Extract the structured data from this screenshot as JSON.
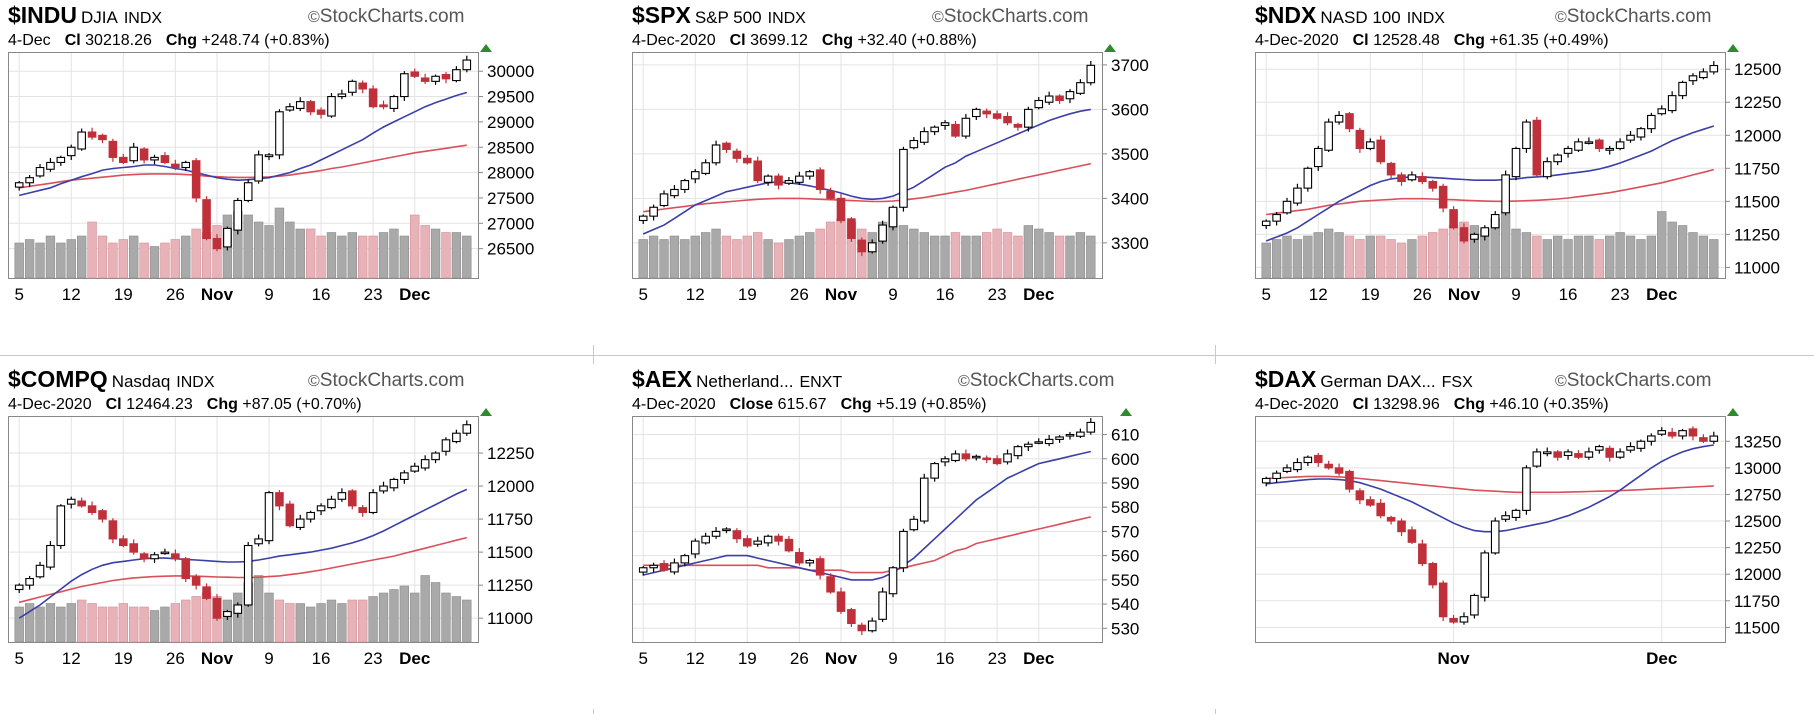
{
  "colors": {
    "up_fill": "#ffffff",
    "down_fill": "#c0303a",
    "ma_short": "#3a3fa8",
    "ma_long": "#d9505a",
    "vol_up": "#a9a9a9",
    "vol_down": "#e8b3b8",
    "uptick": "#2d8a2d"
  },
  "brand": "StockCharts.com",
  "icons": {
    "copyright": "copyright-icon",
    "uptick": "up-triangle-icon",
    "delete": "trash-icon"
  },
  "chart_data": [
    {
      "type": "candlestick",
      "symbol": "$INDU",
      "name": "DJIA",
      "exchange": "INDX",
      "date": "4-Dec",
      "close_label": "Cl",
      "close": "30218.26",
      "chg_label": "Chg",
      "chg": "+248.74 (+0.83%)",
      "x_ticks": [
        "5",
        "12",
        "19",
        "26",
        "Nov",
        "9",
        "16",
        "23",
        "Dec"
      ],
      "y_ticks": [
        "30000",
        "29500",
        "29000",
        "28500",
        "28000",
        "27500",
        "27000",
        "26500"
      ],
      "ylim": [
        26000,
        30300
      ],
      "closes": [
        27800,
        27900,
        28100,
        28200,
        28300,
        28500,
        28800,
        28700,
        28650,
        28300,
        28200,
        28500,
        28250,
        28300,
        28200,
        28100,
        28200,
        27500,
        26700,
        26500,
        26900,
        27450,
        27800,
        28350,
        28350,
        29200,
        29300,
        29400,
        29200,
        29150,
        29500,
        29550,
        29800,
        29650,
        29300,
        29300,
        29500,
        29950,
        29900,
        29800,
        29900,
        29850,
        30030,
        30220
      ],
      "ma_short": [
        27550,
        27600,
        27650,
        27700,
        27780,
        27850,
        27920,
        27980,
        28050,
        28080,
        28100,
        28120,
        28150,
        28150,
        28120,
        28080,
        28050,
        28000,
        27950,
        27900,
        27870,
        27850,
        27860,
        27880,
        27900,
        27950,
        28000,
        28080,
        28150,
        28250,
        28350,
        28450,
        28550,
        28650,
        28780,
        28900,
        29000,
        29100,
        29200,
        29300,
        29380,
        29450,
        29520,
        29580
      ],
      "ma_long": [
        27700,
        27730,
        27760,
        27790,
        27820,
        27850,
        27870,
        27890,
        27910,
        27930,
        27950,
        27960,
        27970,
        27975,
        27975,
        27970,
        27960,
        27950,
        27930,
        27920,
        27910,
        27905,
        27905,
        27910,
        27915,
        27930,
        27950,
        27980,
        28010,
        28040,
        28080,
        28110,
        28150,
        28190,
        28230,
        28270,
        28310,
        28350,
        28390,
        28420,
        28450,
        28480,
        28510,
        28540
      ],
      "volume": [
        0.5,
        0.55,
        0.5,
        0.6,
        0.5,
        0.55,
        0.6,
        0.8,
        0.6,
        0.5,
        0.55,
        0.6,
        0.5,
        0.45,
        0.5,
        0.55,
        0.6,
        0.7,
        0.65,
        0.75,
        0.9,
        0.95,
        0.9,
        0.8,
        0.75,
        1.0,
        0.8,
        0.7,
        0.7,
        0.6,
        0.65,
        0.6,
        0.65,
        0.6,
        0.6,
        0.65,
        0.7,
        0.6,
        0.9,
        0.75,
        0.7,
        0.65,
        0.65,
        0.6
      ]
    },
    {
      "type": "candlestick",
      "symbol": "$SPX",
      "name": "S&P 500",
      "exchange": "INDX",
      "date": "4-Dec-2020",
      "close_label": "Cl",
      "close": "3699.12",
      "chg_label": "Chg",
      "chg": "+32.40 (+0.88%)",
      "x_ticks": [
        "5",
        "12",
        "19",
        "26",
        "Nov",
        "9",
        "16",
        "23",
        "Dec"
      ],
      "y_ticks": [
        "3700",
        "3600",
        "3500",
        "3400",
        "3300"
      ],
      "ylim": [
        3230,
        3720
      ],
      "closes": [
        3360,
        3380,
        3410,
        3420,
        3440,
        3460,
        3480,
        3520,
        3510,
        3490,
        3480,
        3440,
        3450,
        3430,
        3440,
        3450,
        3460,
        3420,
        3400,
        3350,
        3310,
        3280,
        3300,
        3340,
        3380,
        3510,
        3530,
        3550,
        3560,
        3570,
        3540,
        3580,
        3600,
        3590,
        3580,
        3570,
        3560,
        3600,
        3620,
        3630,
        3620,
        3640,
        3660,
        3699
      ],
      "ma_short": [
        3320,
        3330,
        3340,
        3355,
        3370,
        3385,
        3395,
        3405,
        3415,
        3420,
        3425,
        3430,
        3435,
        3437,
        3435,
        3432,
        3428,
        3423,
        3418,
        3412,
        3405,
        3400,
        3398,
        3400,
        3405,
        3415,
        3425,
        3440,
        3455,
        3470,
        3480,
        3495,
        3505,
        3515,
        3525,
        3535,
        3545,
        3555,
        3565,
        3575,
        3583,
        3590,
        3596,
        3600
      ],
      "ma_long": [
        3370,
        3373,
        3376,
        3379,
        3382,
        3385,
        3388,
        3390,
        3392,
        3394,
        3396,
        3398,
        3399,
        3400,
        3400,
        3400,
        3399,
        3398,
        3397,
        3396,
        3395,
        3394,
        3393,
        3393,
        3394,
        3396,
        3399,
        3402,
        3406,
        3410,
        3414,
        3418,
        3423,
        3428,
        3433,
        3438,
        3443,
        3448,
        3453,
        3458,
        3463,
        3468,
        3473,
        3478
      ],
      "volume": [
        0.55,
        0.6,
        0.55,
        0.6,
        0.55,
        0.6,
        0.65,
        0.7,
        0.6,
        0.55,
        0.6,
        0.65,
        0.55,
        0.5,
        0.55,
        0.6,
        0.65,
        0.7,
        0.8,
        0.85,
        0.8,
        0.7,
        0.65,
        0.8,
        1.0,
        0.75,
        0.7,
        0.65,
        0.6,
        0.6,
        0.65,
        0.6,
        0.6,
        0.65,
        0.7,
        0.65,
        0.6,
        0.75,
        0.7,
        0.65,
        0.6,
        0.6,
        0.65,
        0.6
      ]
    },
    {
      "type": "candlestick",
      "symbol": "$NDX",
      "name": "NASD 100",
      "exchange": "INDX",
      "date": "4-Dec-2020",
      "close_label": "Cl",
      "close": "12528.48",
      "chg_label": "Chg",
      "chg": "+61.35 (+0.49%)",
      "x_ticks": [
        "5",
        "12",
        "19",
        "26",
        "Nov",
        "9",
        "16",
        "23",
        "Dec"
      ],
      "y_ticks": [
        "12500",
        "12250",
        "12000",
        "11750",
        "11500",
        "11250",
        "11000"
      ],
      "ylim": [
        10950,
        12600
      ],
      "closes": [
        11350,
        11400,
        11500,
        11600,
        11750,
        11900,
        12100,
        12150,
        12050,
        11900,
        11950,
        11800,
        11700,
        11650,
        11700,
        11650,
        11600,
        11450,
        11300,
        11200,
        11250,
        11300,
        11400,
        11700,
        11900,
        12100,
        11700,
        11800,
        11850,
        11900,
        11950,
        11950,
        11900,
        11900,
        11950,
        12000,
        12050,
        12150,
        12200,
        12300,
        12400,
        12450,
        12480,
        12528
      ],
      "ma_short": [
        11200,
        11230,
        11260,
        11300,
        11350,
        11400,
        11450,
        11500,
        11540,
        11580,
        11620,
        11650,
        11670,
        11680,
        11685,
        11685,
        11680,
        11675,
        11670,
        11665,
        11660,
        11660,
        11660,
        11665,
        11670,
        11680,
        11685,
        11690,
        11700,
        11710,
        11720,
        11730,
        11745,
        11765,
        11790,
        11820,
        11850,
        11880,
        11920,
        11960,
        11990,
        12020,
        12045,
        12070
      ],
      "ma_long": [
        11400,
        11410,
        11420,
        11430,
        11440,
        11455,
        11470,
        11480,
        11490,
        11500,
        11505,
        11510,
        11515,
        11520,
        11520,
        11520,
        11518,
        11515,
        11512,
        11508,
        11505,
        11502,
        11500,
        11500,
        11502,
        11505,
        11508,
        11512,
        11518,
        11525,
        11535,
        11545,
        11555,
        11565,
        11580,
        11595,
        11610,
        11625,
        11640,
        11660,
        11680,
        11700,
        11720,
        11740
      ],
      "volume": [
        0.5,
        0.55,
        0.6,
        0.55,
        0.6,
        0.65,
        0.7,
        0.65,
        0.6,
        0.55,
        0.6,
        0.6,
        0.55,
        0.5,
        0.55,
        0.6,
        0.65,
        0.7,
        0.75,
        0.8,
        0.75,
        0.7,
        0.85,
        0.95,
        0.7,
        0.65,
        0.6,
        0.55,
        0.6,
        0.55,
        0.6,
        0.6,
        0.55,
        0.6,
        0.65,
        0.6,
        0.55,
        0.6,
        0.95,
        0.8,
        0.75,
        0.65,
        0.6,
        0.55
      ]
    },
    {
      "type": "candlestick",
      "symbol": "$COMPQ",
      "name": "Nasdaq",
      "exchange": "INDX",
      "date": "4-Dec-2020",
      "close_label": "Cl",
      "close": "12464.23",
      "chg_label": "Chg",
      "chg": "+87.05 (+0.70%)",
      "x_ticks": [
        "5",
        "12",
        "19",
        "26",
        "Nov",
        "9",
        "16",
        "23",
        "Dec"
      ],
      "y_ticks": [
        "12250",
        "12000",
        "11750",
        "11500",
        "11250",
        "11000"
      ],
      "ylim": [
        10850,
        12500
      ],
      "closes": [
        11250,
        11300,
        11400,
        11550,
        11850,
        11900,
        11850,
        11800,
        11750,
        11600,
        11550,
        11500,
        11450,
        11480,
        11500,
        11450,
        11300,
        11250,
        11150,
        11000,
        11050,
        11100,
        11550,
        11600,
        11950,
        11850,
        11700,
        11750,
        11800,
        11850,
        11900,
        11950,
        11850,
        11800,
        11950,
        12000,
        12050,
        12100,
        12150,
        12200,
        12250,
        12350,
        12400,
        12464
      ],
      "ma_short": [
        11000,
        11050,
        11100,
        11160,
        11220,
        11280,
        11330,
        11370,
        11400,
        11420,
        11430,
        11440,
        11450,
        11455,
        11455,
        11450,
        11445,
        11440,
        11435,
        11430,
        11425,
        11425,
        11430,
        11440,
        11455,
        11470,
        11480,
        11490,
        11500,
        11515,
        11530,
        11550,
        11570,
        11595,
        11625,
        11660,
        11700,
        11740,
        11780,
        11820,
        11860,
        11900,
        11940,
        11975
      ],
      "ma_long": [
        11120,
        11140,
        11160,
        11180,
        11200,
        11220,
        11240,
        11255,
        11270,
        11285,
        11295,
        11305,
        11310,
        11315,
        11318,
        11320,
        11320,
        11318,
        11315,
        11312,
        11310,
        11308,
        11308,
        11310,
        11315,
        11320,
        11330,
        11340,
        11352,
        11365,
        11380,
        11395,
        11410,
        11425,
        11440,
        11455,
        11470,
        11490,
        11510,
        11530,
        11550,
        11570,
        11590,
        11610
      ],
      "volume": [
        0.5,
        0.55,
        0.5,
        0.55,
        0.5,
        0.55,
        0.6,
        0.55,
        0.5,
        0.5,
        0.55,
        0.5,
        0.5,
        0.45,
        0.5,
        0.55,
        0.6,
        0.65,
        0.7,
        0.65,
        0.6,
        0.7,
        0.85,
        0.95,
        0.7,
        0.6,
        0.55,
        0.55,
        0.5,
        0.55,
        0.6,
        0.55,
        0.6,
        0.6,
        0.65,
        0.7,
        0.75,
        0.8,
        0.7,
        0.95,
        0.85,
        0.7,
        0.65,
        0.6
      ]
    },
    {
      "type": "candlestick",
      "symbol": "$AEX",
      "name": "Netherland...",
      "exchange": "ENXT",
      "date": "4-Dec-2020",
      "close_label": "Close",
      "close": "615.67",
      "chg_label": "Chg",
      "chg": "+5.19 (+0.85%)",
      "x_ticks": [
        "5",
        "12",
        "19",
        "26",
        "Nov",
        "9",
        "16",
        "23",
        "Dec"
      ],
      "y_ticks": [
        "610",
        "600",
        "590",
        "580",
        "570",
        "560",
        "550",
        "540",
        "530"
      ],
      "ylim": [
        526,
        616
      ],
      "closes": [
        555,
        556,
        554,
        557,
        560,
        566,
        568,
        570,
        571,
        567,
        564,
        566,
        568,
        566,
        562,
        557,
        558,
        552,
        545,
        537,
        532,
        529,
        533,
        545,
        555,
        570,
        575,
        592,
        598,
        600,
        602,
        600,
        601,
        600,
        598,
        602,
        605,
        606,
        607,
        608,
        609,
        610,
        611,
        615
      ],
      "ma_short": [
        552,
        553,
        554,
        555,
        556,
        557,
        558,
        559,
        560,
        560,
        560,
        559,
        558,
        557,
        556,
        555,
        554,
        553,
        552,
        551,
        550,
        550,
        550,
        551,
        553,
        556,
        559,
        563,
        567,
        571,
        575,
        579,
        583,
        586,
        589,
        592,
        594,
        596,
        598,
        599,
        600,
        601,
        602,
        603
      ],
      "ma_long": [
        556,
        556,
        556,
        556,
        556,
        556,
        556,
        556,
        556,
        556,
        556,
        556,
        555,
        555,
        555,
        555,
        554,
        554,
        554,
        554,
        553,
        553,
        553,
        553,
        554,
        555,
        556,
        557,
        558,
        560,
        562,
        563,
        565,
        566,
        567,
        568,
        569,
        570,
        571,
        572,
        573,
        574,
        575,
        576
      ],
      "volume": []
    },
    {
      "type": "candlestick",
      "symbol": "$DAX",
      "name": "German DAX...",
      "exchange": "FSX",
      "date": "4-Dec-2020",
      "close_label": "Cl",
      "close": "13298.96",
      "chg_label": "Chg",
      "chg": "+46.10 (+0.35%)",
      "x_ticks": [
        "Nov",
        "Dec"
      ],
      "y_ticks": [
        "13250",
        "13000",
        "12750",
        "12500",
        "12250",
        "12000",
        "11750",
        "11500"
      ],
      "ylim": [
        11400,
        13450
      ],
      "closes": [
        12900,
        12950,
        13000,
        13050,
        13100,
        13050,
        13000,
        12950,
        12800,
        12700,
        12650,
        12550,
        12500,
        12400,
        12300,
        12100,
        11900,
        11600,
        11550,
        11600,
        11800,
        12200,
        12500,
        12550,
        12600,
        13000,
        13150,
        13150,
        13100,
        13150,
        13100,
        13150,
        13200,
        13100,
        13150,
        13200,
        13250,
        13300,
        13350,
        13300,
        13350,
        13300,
        13250,
        13299
      ],
      "ma_short": [
        12850,
        12860,
        12870,
        12880,
        12890,
        12895,
        12895,
        12890,
        12880,
        12860,
        12830,
        12800,
        12760,
        12720,
        12680,
        12630,
        12580,
        12530,
        12480,
        12440,
        12410,
        12400,
        12400,
        12410,
        12430,
        12450,
        12470,
        12490,
        12520,
        12550,
        12590,
        12630,
        12680,
        12730,
        12790,
        12860,
        12930,
        13000,
        13060,
        13110,
        13150,
        13180,
        13200,
        13215
      ],
      "ma_long": [
        12900,
        12905,
        12910,
        12915,
        12920,
        12920,
        12920,
        12915,
        12910,
        12900,
        12890,
        12880,
        12870,
        12860,
        12850,
        12840,
        12830,
        12820,
        12810,
        12800,
        12790,
        12785,
        12780,
        12775,
        12770,
        12770,
        12770,
        12770,
        12770,
        12772,
        12775,
        12778,
        12780,
        12783,
        12786,
        12790,
        12795,
        12800,
        12805,
        12810,
        12815,
        12820,
        12825,
        12830
      ],
      "volume": []
    }
  ]
}
